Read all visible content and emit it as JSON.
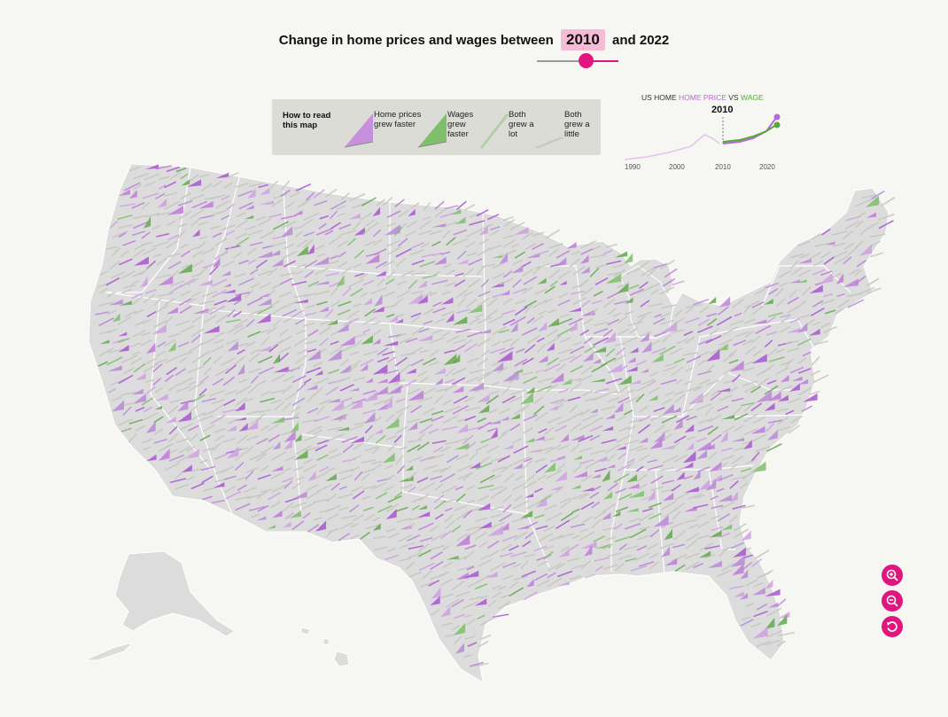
{
  "header": {
    "title_prefix": "Change in home prices and wages between",
    "selected_year": "2010",
    "title_suffix": "and 2022"
  },
  "slider": {
    "value": 2010
  },
  "legend": {
    "title": "How to read this map",
    "items": [
      {
        "label": "Home prices grew faster",
        "color": "#c591dc"
      },
      {
        "label": "Wages grew faster",
        "color": "#7fbf6b"
      },
      {
        "label": "Both grew a lot",
        "color": "#b0cfa5"
      },
      {
        "label": "Both grew a little",
        "color": "#c9c9c3"
      }
    ]
  },
  "sparkline": {
    "title_prefix": "US HOME",
    "title_home": "HOME PRICE",
    "title_vs": "VS",
    "title_wage": "WAGE",
    "marker_year": "2010",
    "x_ticks": [
      "1990",
      "2000",
      "2010",
      "2020"
    ],
    "home_color": "#b36bd6",
    "wage_color": "#55a93a"
  },
  "colors": {
    "land": "#dcdcdc",
    "border": "#ffffff",
    "home_arrow": "#c07ad9",
    "home_arrow_strong": "#a955d1",
    "wage_arrow": "#63a84d",
    "accent": "#e0157d"
  },
  "controls": {
    "zoom_in": "zoom-in-icon",
    "zoom_out": "zoom-out-icon",
    "reset": "reset-icon"
  }
}
